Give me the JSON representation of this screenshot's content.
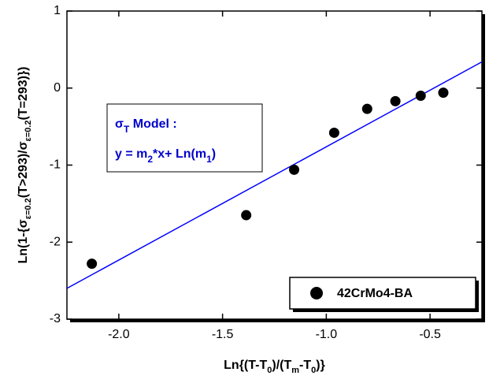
{
  "chart_data": {
    "type": "scatter",
    "series": [
      {
        "name": "42CrMo4-BA",
        "color": "#000000",
        "x": [
          -2.13,
          -1.386,
          -1.155,
          -0.962,
          -0.803,
          -0.667,
          -0.545,
          -0.436
        ],
        "values": [
          -2.28,
          -1.65,
          -1.06,
          -0.58,
          -0.27,
          -0.17,
          -0.1,
          -0.06
        ]
      }
    ],
    "fit_line": {
      "color": "#0000ff",
      "x": [
        -2.25,
        -0.25
      ],
      "values": [
        -2.6,
        0.34
      ]
    },
    "xlim": [
      -2.25,
      -0.25
    ],
    "xticks": [
      {
        "value": -2,
        "label": "-2.0"
      },
      {
        "value": -1.5,
        "label": "-1.5"
      },
      {
        "value": -1,
        "label": "-1.0"
      },
      {
        "value": -0.5,
        "label": "-0.5"
      }
    ],
    "ylim": [
      -3,
      1
    ],
    "yticks": [
      1,
      0,
      -1,
      -2,
      -3
    ],
    "xlabel": [
      "Ln{(T-T",
      "0",
      ")/(T",
      "m",
      "-T",
      "0",
      ")}"
    ],
    "ylabel": [
      "Ln(1-{σ",
      "ε=0.2",
      "(T>293)/σ",
      "ε=0.2",
      "(T=293)})"
    ],
    "annotation": {
      "color": "#0000cc",
      "lines": [
        [
          "σ",
          "T",
          " Model :"
        ],
        [
          "y = m",
          "2",
          "*x+ Ln(m",
          "1",
          ")"
        ]
      ]
    }
  }
}
